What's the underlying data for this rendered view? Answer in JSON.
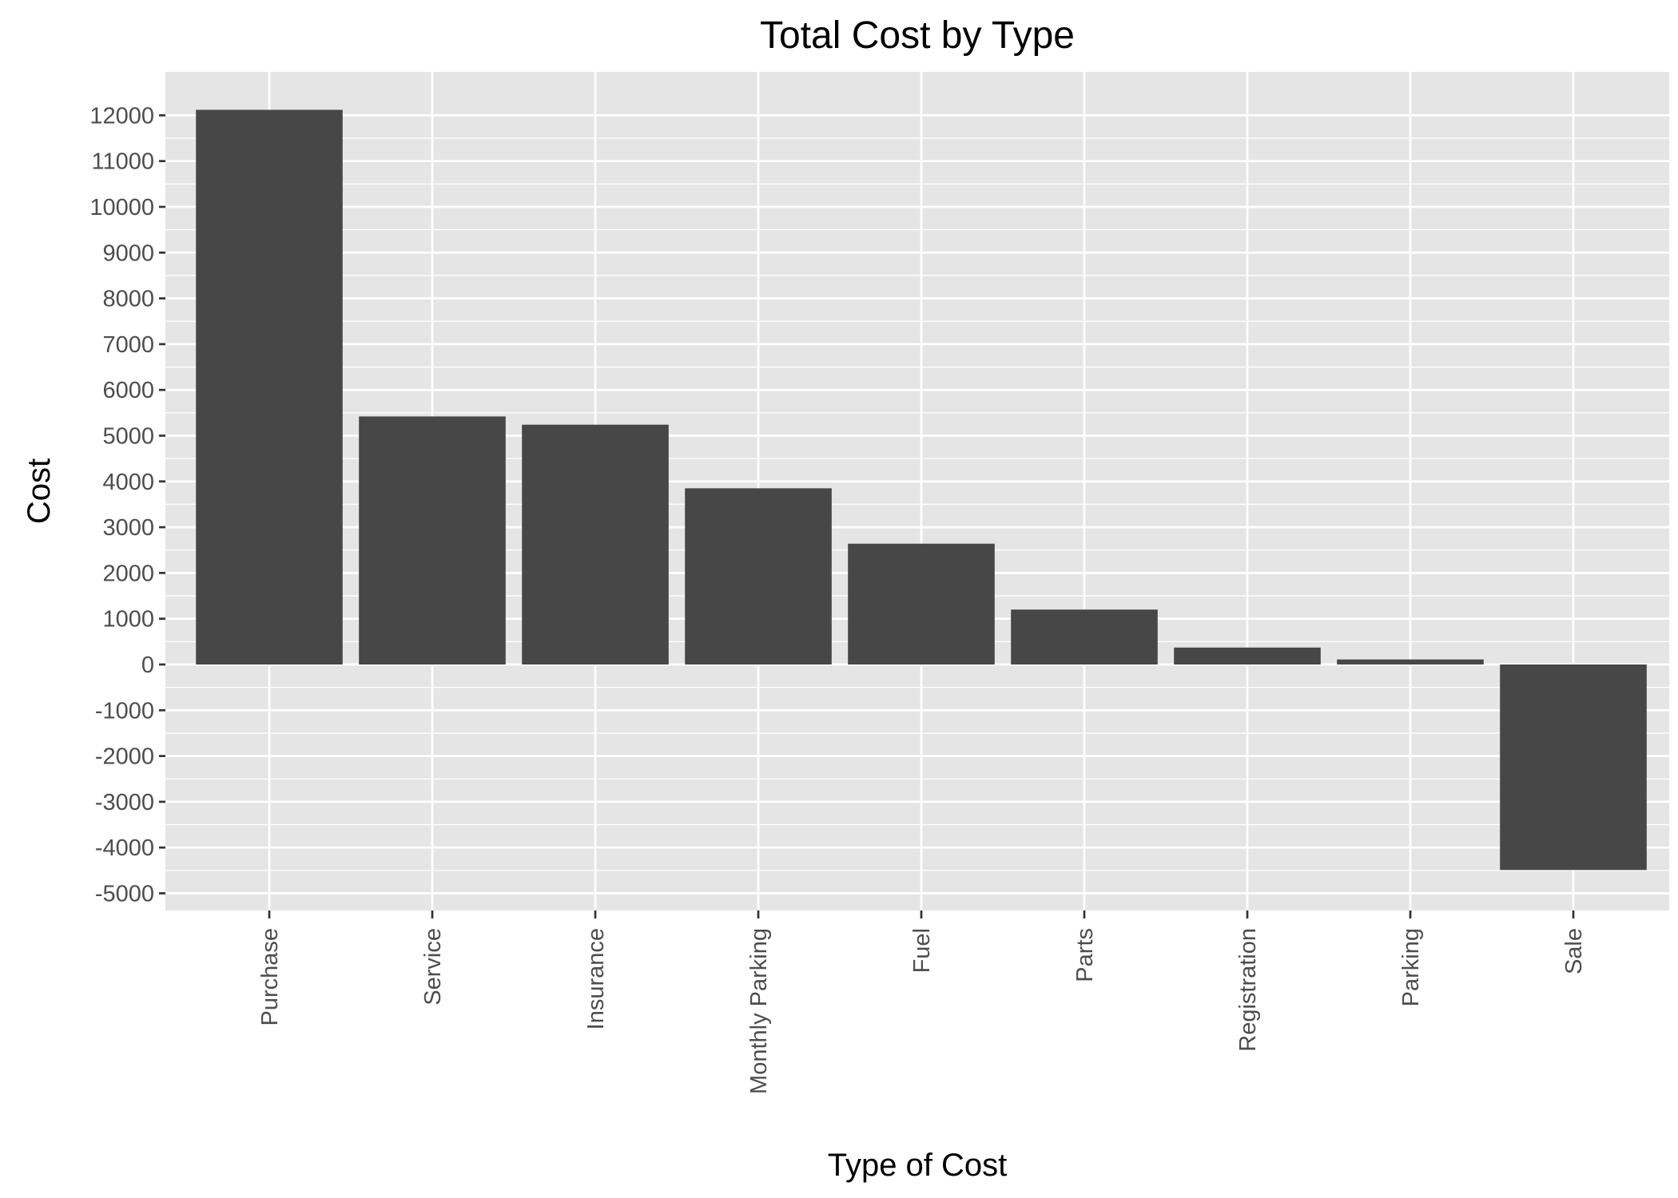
{
  "chart_data": {
    "type": "bar",
    "title": "Total Cost by Type",
    "xlabel": "Type of Cost",
    "ylabel": "Cost",
    "categories": [
      "Purchase",
      "Service",
      "Insurance",
      "Monthly Parking",
      "Fuel",
      "Parts",
      "Registration",
      "Parking",
      "Sale"
    ],
    "values": [
      12120,
      5420,
      5240,
      3850,
      2640,
      1200,
      370,
      110,
      -4490
    ],
    "ylim": [
      -5300,
      13000
    ],
    "yticks": [
      -5000,
      -4000,
      -3000,
      -2000,
      -1000,
      0,
      1000,
      2000,
      3000,
      4000,
      5000,
      6000,
      7000,
      8000,
      9000,
      10000,
      11000,
      12000
    ],
    "grid": true,
    "legend": "none",
    "colors": {
      "panel": "#e5e5e5",
      "grid": "#ffffff",
      "bar": "#474747"
    }
  }
}
